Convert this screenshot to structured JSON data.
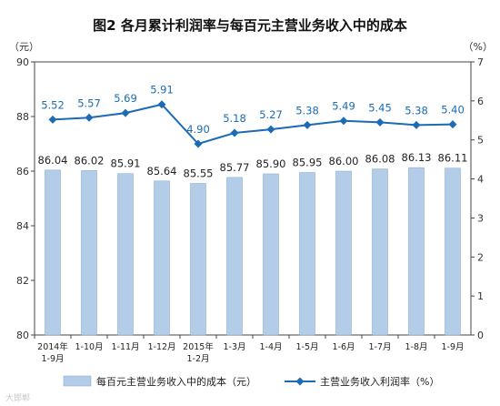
{
  "chart_data": {
    "type": "bar",
    "title": "图2  各月累计利润率与每百元主营业务收入中的成本",
    "left_unit": "（元）",
    "right_unit": "（%）",
    "categories": [
      [
        "2014年",
        "1-9月"
      ],
      [
        "1-10月"
      ],
      [
        "1-11月"
      ],
      [
        "1-12月"
      ],
      [
        "2015年",
        "1-2月"
      ],
      [
        "1-3月"
      ],
      [
        "1-4月"
      ],
      [
        "1-5月"
      ],
      [
        "1-6月"
      ],
      [
        "1-7月"
      ],
      [
        "1-8月"
      ],
      [
        "1-9月"
      ]
    ],
    "series": [
      {
        "name": "每百元主营业务收入中的成本（元）",
        "type": "bar",
        "axis": "left",
        "color": "#b3cde8",
        "values": [
          86.04,
          86.02,
          85.91,
          85.64,
          85.55,
          85.77,
          85.9,
          85.95,
          86.0,
          86.08,
          86.13,
          86.11
        ],
        "labels": [
          "86.04",
          "86.02",
          "85.91",
          "85.64",
          "85.55",
          "85.77",
          "85.90",
          "85.95",
          "86.00",
          "86.08",
          "86.13",
          "86.11"
        ]
      },
      {
        "name": "主营业务收入利润率（%）",
        "type": "line",
        "axis": "right",
        "color": "#1b6bb5",
        "values": [
          5.52,
          5.57,
          5.69,
          5.91,
          4.9,
          5.18,
          5.27,
          5.38,
          5.49,
          5.45,
          5.38,
          5.4
        ],
        "labels": [
          "5.52",
          "5.57",
          "5.69",
          "5.91",
          "4.90",
          "5.18",
          "5.27",
          "5.38",
          "5.49",
          "5.45",
          "5.38",
          "5.40"
        ]
      }
    ],
    "left_axis": {
      "min": 80,
      "max": 90,
      "ticks": [
        "80",
        "82",
        "84",
        "86",
        "88",
        "90"
      ]
    },
    "right_axis": {
      "min": 0,
      "max": 7,
      "ticks": [
        "0",
        "1",
        "2",
        "3",
        "4",
        "5",
        "6",
        "7"
      ]
    },
    "grid": false,
    "legend_placement": "bottom"
  },
  "watermark": "大邯郸"
}
